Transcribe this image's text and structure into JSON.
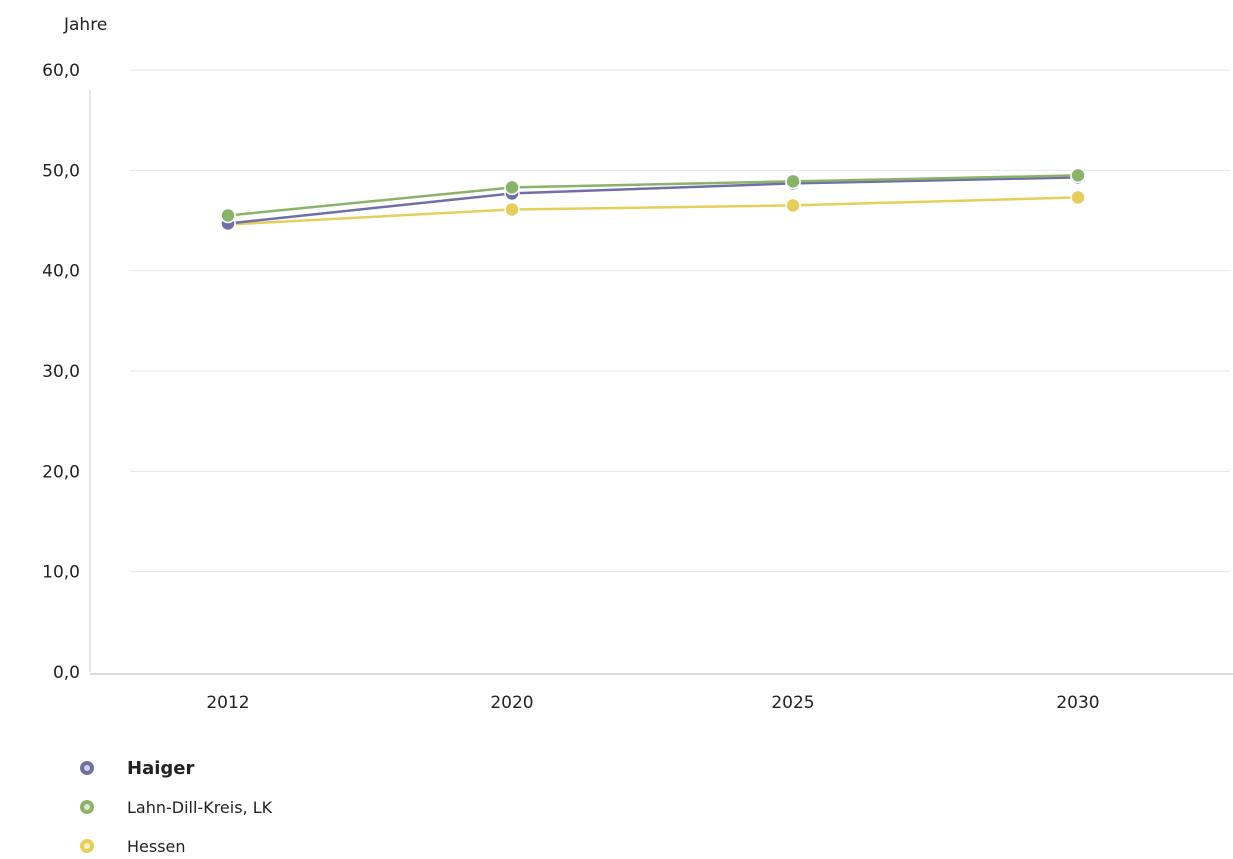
{
  "chart_data": {
    "type": "line",
    "title": "",
    "ylabel": "Jahre",
    "xlabel": "",
    "categories": [
      "2012",
      "2020",
      "2025",
      "2030"
    ],
    "ylim": [
      0,
      60
    ],
    "yticks": [
      "0,0",
      "10,0",
      "20,0",
      "30,0",
      "40,0",
      "50,0",
      "60,0"
    ],
    "grid": true,
    "legend_position": "bottom-left",
    "series": [
      {
        "name": "Haiger",
        "values": [
          44.7,
          47.7,
          48.7,
          49.3
        ],
        "color": "#6f6fa8",
        "legend_bold": true
      },
      {
        "name": "Lahn-Dill-Kreis, LK",
        "values": [
          45.5,
          48.3,
          48.9,
          49.5
        ],
        "color": "#8ab36a",
        "legend_bold": false
      },
      {
        "name": "Hessen",
        "values": [
          44.6,
          46.1,
          46.5,
          47.3
        ],
        "color": "#e6cf58",
        "legend_bold": false
      }
    ]
  }
}
